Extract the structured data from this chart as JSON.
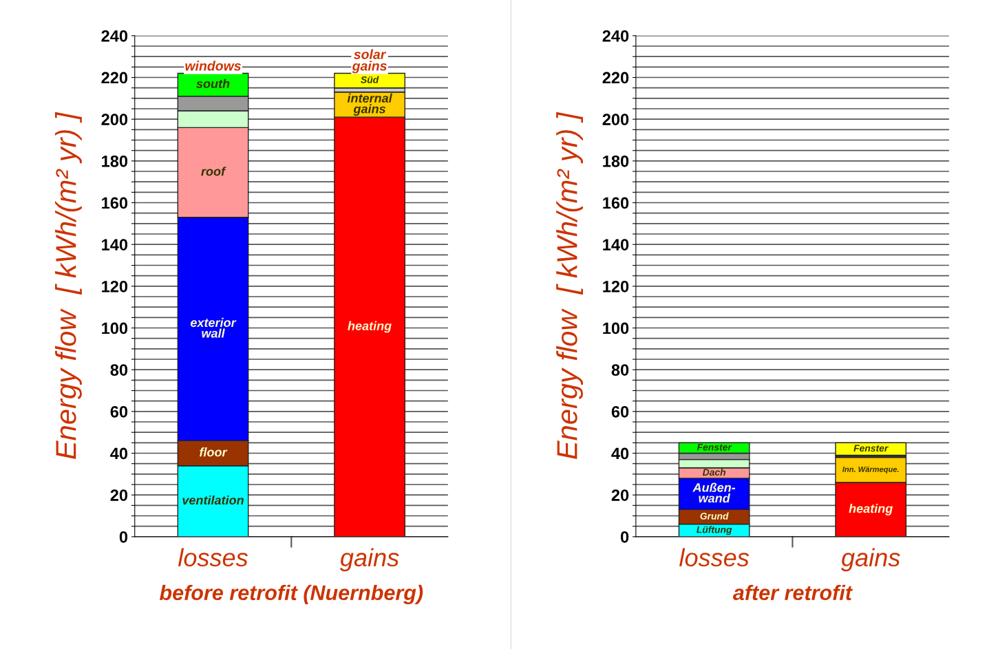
{
  "chart_data": [
    {
      "type": "bar",
      "stacked": true,
      "xlabel": "before retrofit (Nuernberg)",
      "ylabel": "Energy flow  [ kWh/(m² yr) ]",
      "categories": [
        "losses",
        "gains"
      ],
      "ylim": [
        0,
        240
      ],
      "yticks": [
        0,
        {
          "value": 5,
          "label": null
        },
        {
          "value": 10,
          "label": null
        },
        {
          "value": 15,
          "label": null
        },
        20,
        {
          "value": 25,
          "label": null
        },
        {
          "value": 30,
          "label": null
        },
        {
          "value": 35,
          "label": null
        },
        40,
        {
          "value": 45,
          "label": null
        },
        {
          "value": 50,
          "label": null
        },
        {
          "value": 55,
          "label": null
        },
        60,
        {
          "value": 65,
          "label": null
        },
        {
          "value": 70,
          "label": null
        },
        {
          "value": 75,
          "label": null
        },
        80,
        {
          "value": 85,
          "label": null
        },
        {
          "value": 90,
          "label": null
        },
        {
          "value": 95,
          "label": null
        },
        100,
        {
          "value": 105,
          "label": null
        },
        {
          "value": 110,
          "label": null
        },
        {
          "value": 115,
          "label": null
        },
        120,
        {
          "value": 125,
          "label": null
        },
        {
          "value": 130,
          "label": null
        },
        {
          "value": 135,
          "label": null
        },
        140,
        {
          "value": 145,
          "label": null
        },
        {
          "value": 150,
          "label": null
        },
        {
          "value": 155,
          "label": null
        },
        160,
        {
          "value": 165,
          "label": null
        },
        {
          "value": 170,
          "label": null
        },
        {
          "value": 175,
          "label": null
        },
        180,
        {
          "value": 185,
          "label": null
        },
        {
          "value": 190,
          "label": null
        },
        {
          "value": 195,
          "label": null
        },
        200,
        {
          "value": 205,
          "label": null
        },
        {
          "value": 210,
          "label": null
        },
        {
          "value": 215,
          "label": null
        },
        220,
        {
          "value": 225,
          "label": null
        },
        {
          "value": 230,
          "label": null
        },
        {
          "value": 235,
          "label": null
        },
        240
      ],
      "grid": "y",
      "series": [
        {
          "name": "ventilation",
          "color": "#00ffff",
          "values": [
            34,
            null
          ]
        },
        {
          "name": "floor",
          "color": "#993300",
          "values": [
            12,
            null
          ]
        },
        {
          "name": "exterior\nwall",
          "color": "#0000ff",
          "values": [
            107,
            null
          ]
        },
        {
          "name": "roof",
          "color": "#ff9999",
          "values": [
            43,
            null
          ]
        },
        {
          "color": "#ccffcc",
          "values": [
            8,
            null
          ]
        },
        {
          "color": "#999999",
          "values": [
            7,
            null
          ]
        },
        {
          "name": "south",
          "color": "#00ff00",
          "values": [
            11,
            null
          ]
        },
        {
          "name": "heating",
          "color": "#ff0000",
          "values": [
            null,
            201
          ]
        },
        {
          "name": "internal\ngains",
          "color": "#ffcc00",
          "values": [
            null,
            12
          ]
        },
        {
          "color": "#cccccc",
          "values": [
            null,
            2
          ]
        },
        {
          "name": "Süd",
          "color": "#ffff00",
          "values": [
            null,
            7
          ]
        }
      ],
      "annotations": [
        "windows",
        "solar gains"
      ]
    },
    {
      "type": "bar",
      "stacked": true,
      "xlabel": "after retrofit",
      "ylabel": "Energy flow  [ kWh/(m² yr) ]",
      "categories": [
        "losses",
        "gains"
      ],
      "ylim": [
        0,
        240
      ],
      "yticks": [
        0,
        {
          "value": 5,
          "label": null
        },
        {
          "value": 10,
          "label": null
        },
        {
          "value": 15,
          "label": null
        },
        20,
        {
          "value": 25,
          "label": null
        },
        {
          "value": 30,
          "label": null
        },
        {
          "value": 35,
          "label": null
        },
        40,
        {
          "value": 45,
          "label": null
        },
        {
          "value": 50,
          "label": null
        },
        {
          "value": 55,
          "label": null
        },
        60,
        {
          "value": 65,
          "label": null
        },
        {
          "value": 70,
          "label": null
        },
        {
          "value": 75,
          "label": null
        },
        80,
        {
          "value": 85,
          "label": null
        },
        {
          "value": 90,
          "label": null
        },
        {
          "value": 95,
          "label": null
        },
        100,
        {
          "value": 105,
          "label": null
        },
        {
          "value": 110,
          "label": null
        },
        {
          "value": 115,
          "label": null
        },
        120,
        {
          "value": 125,
          "label": null
        },
        {
          "value": 130,
          "label": null
        },
        {
          "value": 135,
          "label": null
        },
        140,
        {
          "value": 145,
          "label": null
        },
        {
          "value": 150,
          "label": null
        },
        {
          "value": 155,
          "label": null
        },
        160,
        {
          "value": 165,
          "label": null
        },
        {
          "value": 170,
          "label": null
        },
        {
          "value": 175,
          "label": null
        },
        180,
        {
          "value": 185,
          "label": null
        },
        {
          "value": 190,
          "label": null
        },
        {
          "value": 195,
          "label": null
        },
        200,
        {
          "value": 205,
          "label": null
        },
        {
          "value": 210,
          "label": null
        },
        {
          "value": 215,
          "label": null
        },
        220,
        {
          "value": 225,
          "label": null
        },
        {
          "value": 230,
          "label": null
        },
        {
          "value": 235,
          "label": null
        },
        240
      ],
      "grid": "y",
      "series": [
        {
          "name": "Lüftung",
          "color": "#00ffff",
          "values": [
            6,
            null
          ]
        },
        {
          "name": "Grund",
          "color": "#993300",
          "values": [
            7,
            null
          ]
        },
        {
          "name": "Außen-\nwand",
          "color": "#0000ff",
          "values": [
            15,
            null
          ]
        },
        {
          "name": "Dach",
          "color": "#ff9999",
          "values": [
            5,
            null
          ]
        },
        {
          "color": "#ccffcc",
          "values": [
            4,
            null
          ]
        },
        {
          "color": "#999999",
          "values": [
            3,
            null
          ]
        },
        {
          "name": "Fenster",
          "color": "#00ff00",
          "values": [
            5,
            null
          ]
        },
        {
          "name": "heating",
          "color": "#ff0000",
          "values": [
            null,
            26
          ]
        },
        {
          "name": "Inn. Wärmeque.",
          "color": "#ffcc00",
          "values": [
            null,
            12
          ]
        },
        {
          "color": "#333333",
          "values": [
            null,
            1
          ]
        },
        {
          "name": "Fenster",
          "color": "#ffff00",
          "values": [
            null,
            6
          ]
        }
      ]
    }
  ]
}
